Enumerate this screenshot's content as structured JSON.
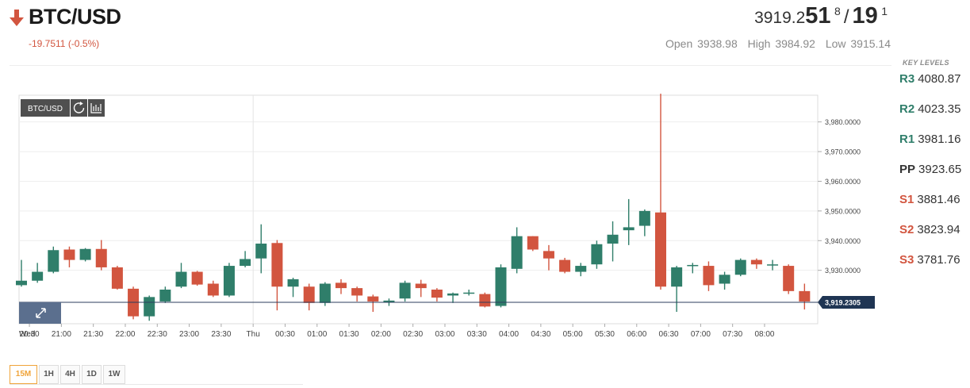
{
  "header": {
    "symbol": "BTC/USD",
    "direction": "down",
    "change": "-19.7511 (-0.5%)",
    "price": {
      "base": "3919.2",
      "big1": "51",
      "sup1": "8",
      "slash": "/",
      "big2": "19",
      "sup2": "1"
    },
    "open_label": "Open",
    "open": "3938.98",
    "high_label": "High",
    "high": "3984.92",
    "low_label": "Low",
    "low": "3915.14"
  },
  "key_levels": {
    "title": "KEY LEVELS",
    "levels": [
      {
        "label": "R3",
        "value": "4080.87",
        "kind": "r"
      },
      {
        "label": "R2",
        "value": "4023.35",
        "kind": "r"
      },
      {
        "label": "R1",
        "value": "3981.16",
        "kind": "r"
      },
      {
        "label": "PP",
        "value": "3923.65",
        "kind": "pp"
      },
      {
        "label": "S1",
        "value": "3881.46",
        "kind": "s"
      },
      {
        "label": "S2",
        "value": "3823.94",
        "kind": "s"
      },
      {
        "label": "S3",
        "value": "3781.76",
        "kind": "s"
      }
    ]
  },
  "timeframes": {
    "items": [
      "15M",
      "1H",
      "4H",
      "1D",
      "1W"
    ],
    "active": "15M"
  },
  "chart_data": {
    "type": "candlestick",
    "badge": "BTC/USD",
    "current_price_label": "3,919.2305",
    "current_price": 3919.2305,
    "ylim": [
      3912,
      3989
    ],
    "y_ticks": [
      3930,
      3940,
      3950,
      3960,
      3970,
      3980
    ],
    "y_tick_labels": [
      "3,930.0000",
      "3,940.0000",
      "3,950.0000",
      "3,960.0000",
      "3,970.0000",
      "3,980.0000"
    ],
    "x_tick_labels": [
      "Wed",
      "20:30",
      "21:00",
      "21:30",
      "22:00",
      "22:30",
      "23:00",
      "23:30",
      "Thu",
      "00:30",
      "01:00",
      "01:30",
      "02:00",
      "02:30",
      "03:00",
      "03:30",
      "04:00",
      "04:30",
      "05:00",
      "05:30",
      "06:00",
      "06:30",
      "07:00",
      "07:30",
      "08:00"
    ],
    "x_tick_index": [
      0,
      1,
      2,
      3,
      4,
      5,
      6,
      7,
      8,
      9,
      10,
      11,
      12,
      13,
      14,
      15,
      16,
      17,
      18,
      19,
      20,
      21,
      22,
      23,
      24
    ],
    "colors": {
      "up": "#2f7e6a",
      "down": "#d2553f"
    },
    "candles": [
      {
        "o": 3925.0,
        "h": 3933.5,
        "l": 3924.5,
        "c": 3926.5
      },
      {
        "o": 3926.5,
        "h": 3932.5,
        "l": 3925.8,
        "c": 3929.5
      },
      {
        "o": 3929.5,
        "h": 3938.0,
        "l": 3929.0,
        "c": 3936.8
      },
      {
        "o": 3937.0,
        "h": 3938.0,
        "l": 3931.0,
        "c": 3933.5
      },
      {
        "o": 3933.5,
        "h": 3937.5,
        "l": 3933.0,
        "c": 3937.2
      },
      {
        "o": 3937.2,
        "h": 3940.2,
        "l": 3930.0,
        "c": 3931.0
      },
      {
        "o": 3931.0,
        "h": 3931.5,
        "l": 3923.5,
        "c": 3923.8
      },
      {
        "o": 3923.8,
        "h": 3924.5,
        "l": 3913.5,
        "c": 3914.5
      },
      {
        "o": 3914.5,
        "h": 3921.5,
        "l": 3913.0,
        "c": 3921.0
      },
      {
        "o": 3919.5,
        "h": 3924.5,
        "l": 3919.0,
        "c": 3923.5
      },
      {
        "o": 3924.5,
        "h": 3932.5,
        "l": 3924.0,
        "c": 3929.5
      },
      {
        "o": 3929.5,
        "h": 3929.8,
        "l": 3924.8,
        "c": 3925.2
      },
      {
        "o": 3925.5,
        "h": 3926.5,
        "l": 3921.0,
        "c": 3921.5
      },
      {
        "o": 3921.5,
        "h": 3932.5,
        "l": 3921.0,
        "c": 3931.5
      },
      {
        "o": 3931.5,
        "h": 3936.5,
        "l": 3931.0,
        "c": 3933.8
      },
      {
        "o": 3934.0,
        "h": 3945.5,
        "l": 3929.0,
        "c": 3939.0
      },
      {
        "o": 3939.2,
        "h": 3940.2,
        "l": 3916.5,
        "c": 3924.5
      },
      {
        "o": 3924.5,
        "h": 3927.5,
        "l": 3921.0,
        "c": 3927.0
      },
      {
        "o": 3924.5,
        "h": 3925.5,
        "l": 3916.5,
        "c": 3919.0
      },
      {
        "o": 3919.0,
        "h": 3926.0,
        "l": 3918.0,
        "c": 3925.5
      },
      {
        "o": 3925.8,
        "h": 3927.0,
        "l": 3922.0,
        "c": 3924.0
      },
      {
        "o": 3924.0,
        "h": 3924.5,
        "l": 3919.5,
        "c": 3921.5
      },
      {
        "o": 3921.2,
        "h": 3921.8,
        "l": 3916.0,
        "c": 3919.5
      },
      {
        "o": 3919.3,
        "h": 3920.5,
        "l": 3918.0,
        "c": 3919.8
      },
      {
        "o": 3920.5,
        "h": 3926.5,
        "l": 3919.5,
        "c": 3925.8
      },
      {
        "o": 3925.5,
        "h": 3926.8,
        "l": 3921.0,
        "c": 3924.0
      },
      {
        "o": 3923.5,
        "h": 3924.0,
        "l": 3919.5,
        "c": 3920.8
      },
      {
        "o": 3921.5,
        "h": 3922.5,
        "l": 3919.0,
        "c": 3922.2
      },
      {
        "o": 3922.5,
        "h": 3923.5,
        "l": 3921.5,
        "c": 3922.5
      },
      {
        "o": 3922.0,
        "h": 3922.5,
        "l": 3917.5,
        "c": 3917.8
      },
      {
        "o": 3918.0,
        "h": 3932.0,
        "l": 3917.5,
        "c": 3931.0
      },
      {
        "o": 3930.5,
        "h": 3944.5,
        "l": 3929.0,
        "c": 3941.5
      },
      {
        "o": 3941.5,
        "h": 3941.5,
        "l": 3936.5,
        "c": 3937.0
      },
      {
        "o": 3936.5,
        "h": 3938.5,
        "l": 3930.0,
        "c": 3934.0
      },
      {
        "o": 3933.5,
        "h": 3934.2,
        "l": 3929.0,
        "c": 3929.5
      },
      {
        "o": 3929.5,
        "h": 3932.5,
        "l": 3928.0,
        "c": 3931.5
      },
      {
        "o": 3932.0,
        "h": 3940.0,
        "l": 3930.5,
        "c": 3938.8
      },
      {
        "o": 3939.0,
        "h": 3946.5,
        "l": 3933.0,
        "c": 3942.0
      },
      {
        "o": 3943.5,
        "h": 3954.0,
        "l": 3938.5,
        "c": 3944.5
      },
      {
        "o": 3945.0,
        "h": 3950.5,
        "l": 3941.5,
        "c": 3950.0
      },
      {
        "o": 3949.5,
        "h": 3989.5,
        "l": 3923.5,
        "c": 3924.5
      },
      {
        "o": 3924.5,
        "h": 3931.5,
        "l": 3916.0,
        "c": 3931.0
      },
      {
        "o": 3931.5,
        "h": 3932.5,
        "l": 3929.0,
        "c": 3931.8
      },
      {
        "o": 3931.5,
        "h": 3933.0,
        "l": 3923.0,
        "c": 3925.0
      },
      {
        "o": 3925.5,
        "h": 3929.5,
        "l": 3923.5,
        "c": 3928.5
      },
      {
        "o": 3928.5,
        "h": 3934.0,
        "l": 3928.0,
        "c": 3933.5
      },
      {
        "o": 3933.5,
        "h": 3934.0,
        "l": 3930.5,
        "c": 3932.0
      },
      {
        "o": 3932.0,
        "h": 3933.5,
        "l": 3930.0,
        "c": 3932.0
      },
      {
        "o": 3931.5,
        "h": 3932.0,
        "l": 3922.0,
        "c": 3923.0
      },
      {
        "o": 3923.0,
        "h": 3925.5,
        "l": 3916.8,
        "c": 3919.5
      }
    ]
  }
}
